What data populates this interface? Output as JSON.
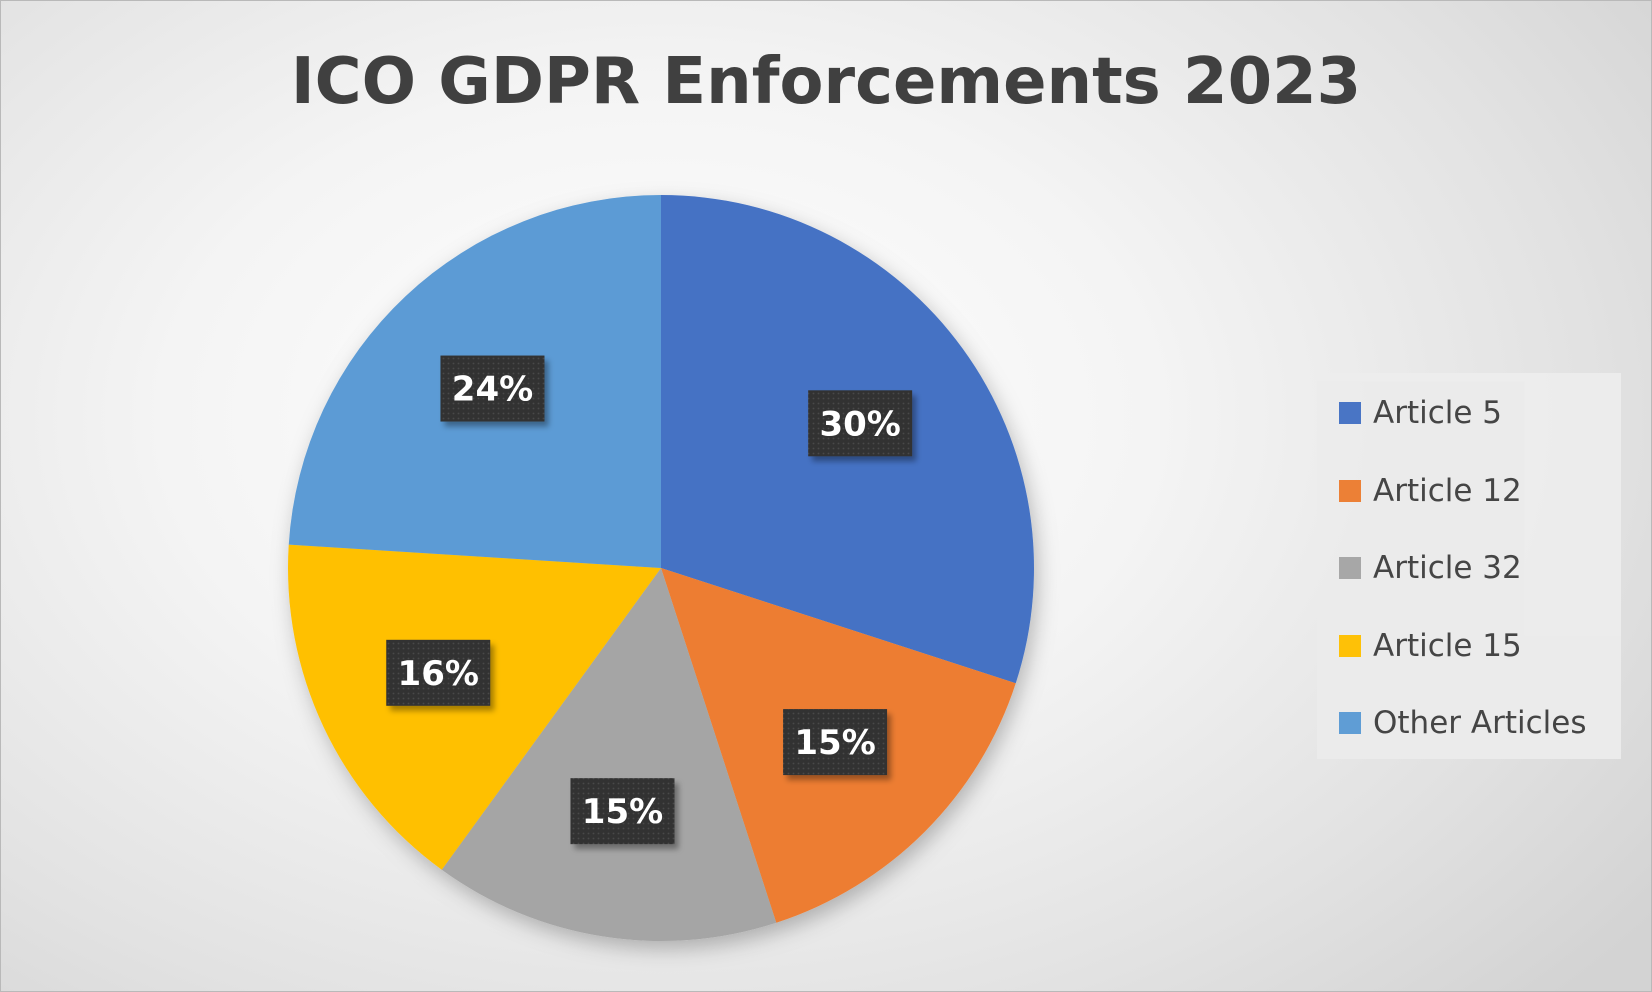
{
  "chart_data": {
    "type": "pie",
    "title": "ICO GDPR Enforcements 2023",
    "categories": [
      "Article 5",
      "Article 12",
      "Article 32",
      "Article 15",
      "Other Articles"
    ],
    "values": [
      30,
      15,
      15,
      16,
      24
    ],
    "data_labels": [
      "30%",
      "15%",
      "15%",
      "16%",
      "24%"
    ],
    "colors": [
      "#4472C4",
      "#ED7D31",
      "#A5A5A5",
      "#FFC000",
      "#5B9BD5"
    ],
    "legend_position": "right"
  }
}
